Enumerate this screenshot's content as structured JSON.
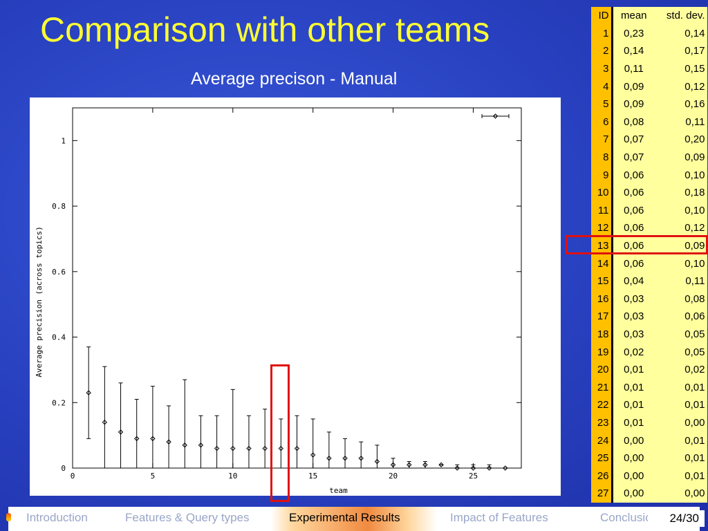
{
  "slide": {
    "title": "Comparison with other teams",
    "subtitle": "Average precison - Manual",
    "page": "24/30"
  },
  "nav": {
    "tabs": [
      {
        "label": "Introduction",
        "active": false
      },
      {
        "label": "Features & Query types",
        "active": false
      },
      {
        "label": "Experimental Results",
        "active": true
      },
      {
        "label": "Impact of Features",
        "active": false
      },
      {
        "label": "Conclusions",
        "active": false
      }
    ]
  },
  "colors": {
    "title": "#ffff33",
    "id_column": "#ffc000",
    "value_columns": "#ffff9e",
    "highlight": "#e01010",
    "background": "#2a44c4"
  },
  "table": {
    "headers": [
      "ID",
      "mean",
      "std. dev."
    ],
    "highlight_id": 13,
    "rows": [
      [
        "1",
        "0,23",
        "0,14"
      ],
      [
        "2",
        "0,14",
        "0,17"
      ],
      [
        "3",
        "0,11",
        "0,15"
      ],
      [
        "4",
        "0,09",
        "0,12"
      ],
      [
        "5",
        "0,09",
        "0,16"
      ],
      [
        "6",
        "0,08",
        "0,11"
      ],
      [
        "7",
        "0,07",
        "0,20"
      ],
      [
        "8",
        "0,07",
        "0,09"
      ],
      [
        "9",
        "0,06",
        "0,10"
      ],
      [
        "10",
        "0,06",
        "0,18"
      ],
      [
        "11",
        "0,06",
        "0,10"
      ],
      [
        "12",
        "0,06",
        "0,12"
      ],
      [
        "13",
        "0,06",
        "0,09"
      ],
      [
        "14",
        "0,06",
        "0,10"
      ],
      [
        "15",
        "0,04",
        "0,11"
      ],
      [
        "16",
        "0,03",
        "0,08"
      ],
      [
        "17",
        "0,03",
        "0,06"
      ],
      [
        "18",
        "0,03",
        "0,05"
      ],
      [
        "19",
        "0,02",
        "0,05"
      ],
      [
        "20",
        "0,01",
        "0,02"
      ],
      [
        "21",
        "0,01",
        "0,01"
      ],
      [
        "22",
        "0,01",
        "0,01"
      ],
      [
        "23",
        "0,01",
        "0,00"
      ],
      [
        "24",
        "0,00",
        "0,01"
      ],
      [
        "25",
        "0,00",
        "0,01"
      ],
      [
        "26",
        "0,00",
        "0,01"
      ],
      [
        "27",
        "0,00",
        "0,00"
      ]
    ]
  },
  "chart_data": {
    "type": "scatter",
    "error_bars": true,
    "xlabel": "team",
    "ylabel": "Average precision (across topics)",
    "xlim": [
      0,
      28
    ],
    "ylim": [
      0,
      1.1
    ],
    "x_ticks": [
      "0",
      "5",
      "10",
      "15",
      "20",
      "25"
    ],
    "y_ticks": [
      "0",
      "0.2",
      "0.4",
      "0.6",
      "0.8",
      "1"
    ],
    "grid": false,
    "legend_key": "top-right",
    "highlight_team": 13,
    "points": [
      {
        "x": 1,
        "y": 0.23,
        "lo": 0.09,
        "hi": 0.37
      },
      {
        "x": 2,
        "y": 0.14,
        "lo": 0.0,
        "hi": 0.31
      },
      {
        "x": 3,
        "y": 0.11,
        "lo": 0.0,
        "hi": 0.26
      },
      {
        "x": 4,
        "y": 0.09,
        "lo": 0.0,
        "hi": 0.21
      },
      {
        "x": 5,
        "y": 0.09,
        "lo": 0.0,
        "hi": 0.25
      },
      {
        "x": 6,
        "y": 0.08,
        "lo": 0.0,
        "hi": 0.19
      },
      {
        "x": 7,
        "y": 0.07,
        "lo": 0.0,
        "hi": 0.27
      },
      {
        "x": 8,
        "y": 0.07,
        "lo": 0.0,
        "hi": 0.16
      },
      {
        "x": 9,
        "y": 0.06,
        "lo": 0.0,
        "hi": 0.16
      },
      {
        "x": 10,
        "y": 0.06,
        "lo": 0.0,
        "hi": 0.24
      },
      {
        "x": 11,
        "y": 0.06,
        "lo": 0.0,
        "hi": 0.16
      },
      {
        "x": 12,
        "y": 0.06,
        "lo": 0.0,
        "hi": 0.18
      },
      {
        "x": 13,
        "y": 0.06,
        "lo": 0.0,
        "hi": 0.15
      },
      {
        "x": 14,
        "y": 0.06,
        "lo": 0.0,
        "hi": 0.16
      },
      {
        "x": 15,
        "y": 0.04,
        "lo": 0.0,
        "hi": 0.15
      },
      {
        "x": 16,
        "y": 0.03,
        "lo": 0.0,
        "hi": 0.11
      },
      {
        "x": 17,
        "y": 0.03,
        "lo": 0.0,
        "hi": 0.09
      },
      {
        "x": 18,
        "y": 0.03,
        "lo": 0.0,
        "hi": 0.08
      },
      {
        "x": 19,
        "y": 0.02,
        "lo": 0.0,
        "hi": 0.07
      },
      {
        "x": 20,
        "y": 0.01,
        "lo": 0.0,
        "hi": 0.03
      },
      {
        "x": 21,
        "y": 0.01,
        "lo": 0.0,
        "hi": 0.02
      },
      {
        "x": 22,
        "y": 0.01,
        "lo": 0.0,
        "hi": 0.02
      },
      {
        "x": 23,
        "y": 0.01,
        "lo": 0.01,
        "hi": 0.01
      },
      {
        "x": 24,
        "y": 0.0,
        "lo": 0.0,
        "hi": 0.01
      },
      {
        "x": 25,
        "y": 0.0,
        "lo": 0.0,
        "hi": 0.01
      },
      {
        "x": 26,
        "y": 0.0,
        "lo": 0.0,
        "hi": 0.01
      },
      {
        "x": 27,
        "y": 0.0,
        "lo": 0.0,
        "hi": 0.0
      }
    ]
  }
}
